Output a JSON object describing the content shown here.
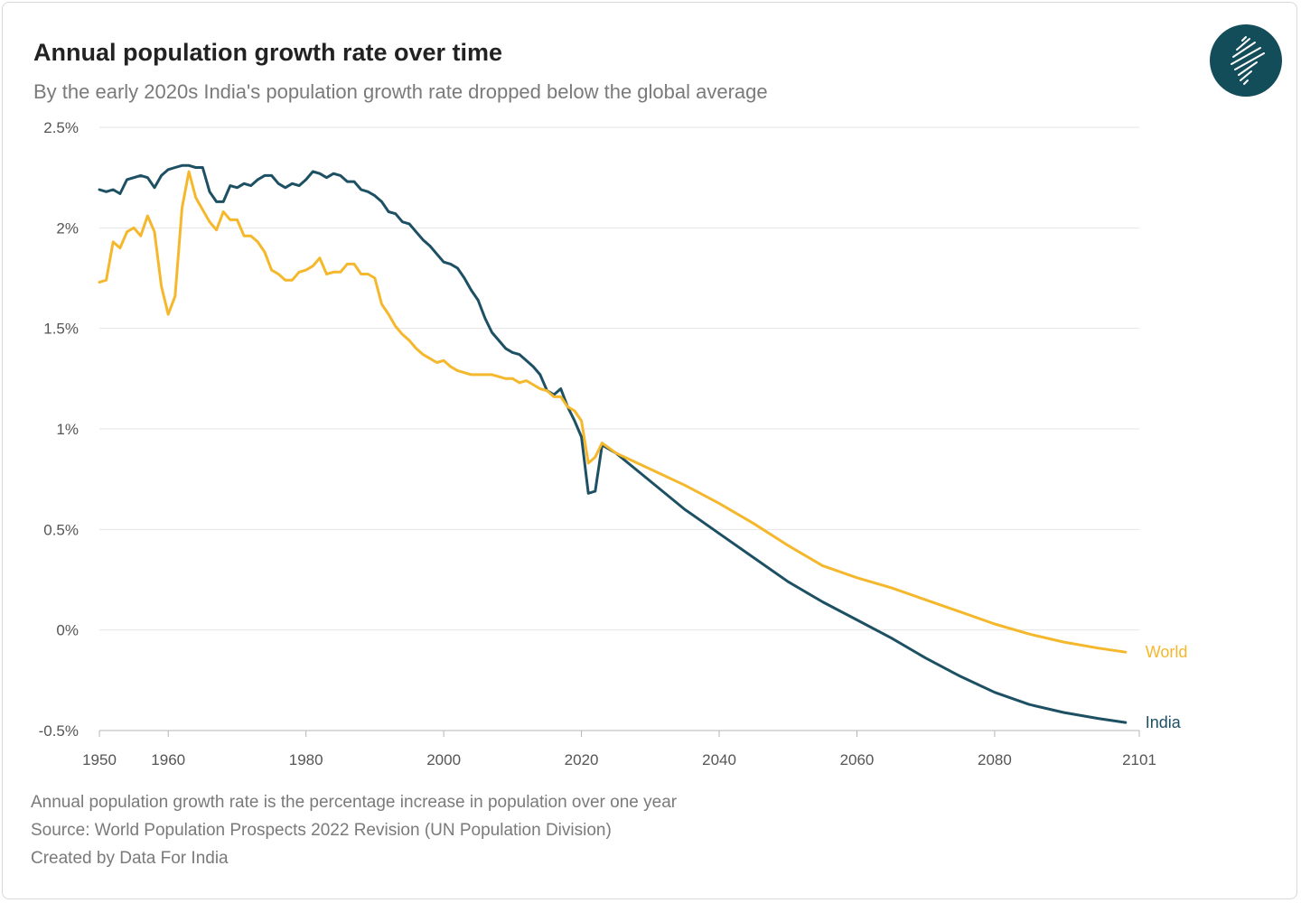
{
  "header": {
    "title": "Annual population growth rate over time",
    "subtitle": "By the early 2020s India's population growth rate dropped below the global average"
  },
  "logo": {
    "icon": "india-map-icon",
    "bg_color": "#144d5a"
  },
  "footer": {
    "note": "Annual population growth rate is the percentage increase in population over one year",
    "source": "Source: World Population Prospects 2022 Revision (UN Population Division)",
    "credit": "Created by Data For India"
  },
  "chart_data": {
    "type": "line",
    "title": "Annual population growth rate over time",
    "subtitle": "By the early 2020s India's population growth rate dropped below the global average",
    "xlabel": "",
    "ylabel": "",
    "xlim": [
      1950,
      2101
    ],
    "ylim": [
      -0.5,
      2.5
    ],
    "grid": true,
    "legend": "inline-right",
    "x_ticks": [
      1950,
      1960,
      1980,
      2000,
      2020,
      2040,
      2060,
      2080,
      2101
    ],
    "y_ticks": [
      2.5,
      2,
      1.5,
      1,
      0.5,
      0,
      -0.5
    ],
    "y_tick_labels": [
      "2.5%",
      "2%",
      "1.5%",
      "1%",
      "0.5%",
      "0%",
      "-0.5%"
    ],
    "series": [
      {
        "name": "India",
        "color": "#1d5063",
        "points": [
          [
            1950,
            2.19
          ],
          [
            1951,
            2.18
          ],
          [
            1952,
            2.19
          ],
          [
            1953,
            2.17
          ],
          [
            1954,
            2.24
          ],
          [
            1955,
            2.25
          ],
          [
            1956,
            2.26
          ],
          [
            1957,
            2.25
          ],
          [
            1958,
            2.2
          ],
          [
            1959,
            2.26
          ],
          [
            1960,
            2.29
          ],
          [
            1961,
            2.3
          ],
          [
            1962,
            2.31
          ],
          [
            1963,
            2.31
          ],
          [
            1964,
            2.3
          ],
          [
            1965,
            2.3
          ],
          [
            1966,
            2.18
          ],
          [
            1967,
            2.13
          ],
          [
            1968,
            2.13
          ],
          [
            1969,
            2.21
          ],
          [
            1970,
            2.2
          ],
          [
            1971,
            2.22
          ],
          [
            1972,
            2.21
          ],
          [
            1973,
            2.24
          ],
          [
            1974,
            2.26
          ],
          [
            1975,
            2.26
          ],
          [
            1976,
            2.22
          ],
          [
            1977,
            2.2
          ],
          [
            1978,
            2.22
          ],
          [
            1979,
            2.21
          ],
          [
            1980,
            2.24
          ],
          [
            1981,
            2.28
          ],
          [
            1982,
            2.27
          ],
          [
            1983,
            2.25
          ],
          [
            1984,
            2.27
          ],
          [
            1985,
            2.26
          ],
          [
            1986,
            2.23
          ],
          [
            1987,
            2.23
          ],
          [
            1988,
            2.19
          ],
          [
            1989,
            2.18
          ],
          [
            1990,
            2.16
          ],
          [
            1991,
            2.13
          ],
          [
            1992,
            2.08
          ],
          [
            1993,
            2.07
          ],
          [
            1994,
            2.03
          ],
          [
            1995,
            2.02
          ],
          [
            1996,
            1.98
          ],
          [
            1997,
            1.94
          ],
          [
            1998,
            1.91
          ],
          [
            1999,
            1.87
          ],
          [
            2000,
            1.83
          ],
          [
            2001,
            1.82
          ],
          [
            2002,
            1.8
          ],
          [
            2003,
            1.75
          ],
          [
            2004,
            1.69
          ],
          [
            2005,
            1.64
          ],
          [
            2006,
            1.55
          ],
          [
            2007,
            1.48
          ],
          [
            2008,
            1.44
          ],
          [
            2009,
            1.4
          ],
          [
            2010,
            1.38
          ],
          [
            2011,
            1.37
          ],
          [
            2012,
            1.34
          ],
          [
            2013,
            1.31
          ],
          [
            2014,
            1.27
          ],
          [
            2015,
            1.19
          ],
          [
            2016,
            1.17
          ],
          [
            2017,
            1.2
          ],
          [
            2018,
            1.11
          ],
          [
            2019,
            1.04
          ],
          [
            2020,
            0.96
          ],
          [
            2021,
            0.68
          ],
          [
            2022,
            0.69
          ],
          [
            2023,
            0.92
          ],
          [
            2024,
            0.9
          ],
          [
            2025,
            0.88
          ],
          [
            2030,
            0.74
          ],
          [
            2035,
            0.6
          ],
          [
            2040,
            0.48
          ],
          [
            2045,
            0.36
          ],
          [
            2050,
            0.24
          ],
          [
            2055,
            0.14
          ],
          [
            2060,
            0.05
          ],
          [
            2065,
            -0.04
          ],
          [
            2070,
            -0.14
          ],
          [
            2075,
            -0.23
          ],
          [
            2080,
            -0.31
          ],
          [
            2085,
            -0.37
          ],
          [
            2090,
            -0.41
          ],
          [
            2095,
            -0.44
          ],
          [
            2099,
            -0.46
          ]
        ]
      },
      {
        "name": "World",
        "color": "#f5b72b",
        "points": [
          [
            1950,
            1.73
          ],
          [
            1951,
            1.74
          ],
          [
            1952,
            1.93
          ],
          [
            1953,
            1.9
          ],
          [
            1954,
            1.98
          ],
          [
            1955,
            2.0
          ],
          [
            1956,
            1.96
          ],
          [
            1957,
            2.06
          ],
          [
            1958,
            1.98
          ],
          [
            1959,
            1.71
          ],
          [
            1960,
            1.57
          ],
          [
            1961,
            1.66
          ],
          [
            1962,
            2.1
          ],
          [
            1963,
            2.28
          ],
          [
            1964,
            2.15
          ],
          [
            1965,
            2.09
          ],
          [
            1966,
            2.03
          ],
          [
            1967,
            1.99
          ],
          [
            1968,
            2.08
          ],
          [
            1969,
            2.04
          ],
          [
            1970,
            2.04
          ],
          [
            1971,
            1.96
          ],
          [
            1972,
            1.96
          ],
          [
            1973,
            1.93
          ],
          [
            1974,
            1.88
          ],
          [
            1975,
            1.79
          ],
          [
            1976,
            1.77
          ],
          [
            1977,
            1.74
          ],
          [
            1978,
            1.74
          ],
          [
            1979,
            1.78
          ],
          [
            1980,
            1.79
          ],
          [
            1981,
            1.81
          ],
          [
            1982,
            1.85
          ],
          [
            1983,
            1.77
          ],
          [
            1984,
            1.78
          ],
          [
            1985,
            1.78
          ],
          [
            1986,
            1.82
          ],
          [
            1987,
            1.82
          ],
          [
            1988,
            1.77
          ],
          [
            1989,
            1.77
          ],
          [
            1990,
            1.75
          ],
          [
            1991,
            1.62
          ],
          [
            1992,
            1.57
          ],
          [
            1993,
            1.51
          ],
          [
            1994,
            1.47
          ],
          [
            1995,
            1.44
          ],
          [
            1996,
            1.4
          ],
          [
            1997,
            1.37
          ],
          [
            1998,
            1.35
          ],
          [
            1999,
            1.33
          ],
          [
            2000,
            1.34
          ],
          [
            2001,
            1.31
          ],
          [
            2002,
            1.29
          ],
          [
            2003,
            1.28
          ],
          [
            2004,
            1.27
          ],
          [
            2005,
            1.27
          ],
          [
            2006,
            1.27
          ],
          [
            2007,
            1.27
          ],
          [
            2008,
            1.26
          ],
          [
            2009,
            1.25
          ],
          [
            2010,
            1.25
          ],
          [
            2011,
            1.23
          ],
          [
            2012,
            1.24
          ],
          [
            2013,
            1.22
          ],
          [
            2014,
            1.2
          ],
          [
            2015,
            1.19
          ],
          [
            2016,
            1.16
          ],
          [
            2017,
            1.16
          ],
          [
            2018,
            1.11
          ],
          [
            2019,
            1.09
          ],
          [
            2020,
            1.04
          ],
          [
            2021,
            0.83
          ],
          [
            2022,
            0.86
          ],
          [
            2023,
            0.93
          ],
          [
            2025,
            0.88
          ],
          [
            2030,
            0.8
          ],
          [
            2035,
            0.72
          ],
          [
            2040,
            0.63
          ],
          [
            2045,
            0.53
          ],
          [
            2050,
            0.42
          ],
          [
            2055,
            0.32
          ],
          [
            2060,
            0.26
          ],
          [
            2065,
            0.21
          ],
          [
            2070,
            0.15
          ],
          [
            2075,
            0.09
          ],
          [
            2080,
            0.03
          ],
          [
            2085,
            -0.02
          ],
          [
            2090,
            -0.06
          ],
          [
            2095,
            -0.09
          ],
          [
            2099,
            -0.11
          ]
        ]
      }
    ]
  }
}
